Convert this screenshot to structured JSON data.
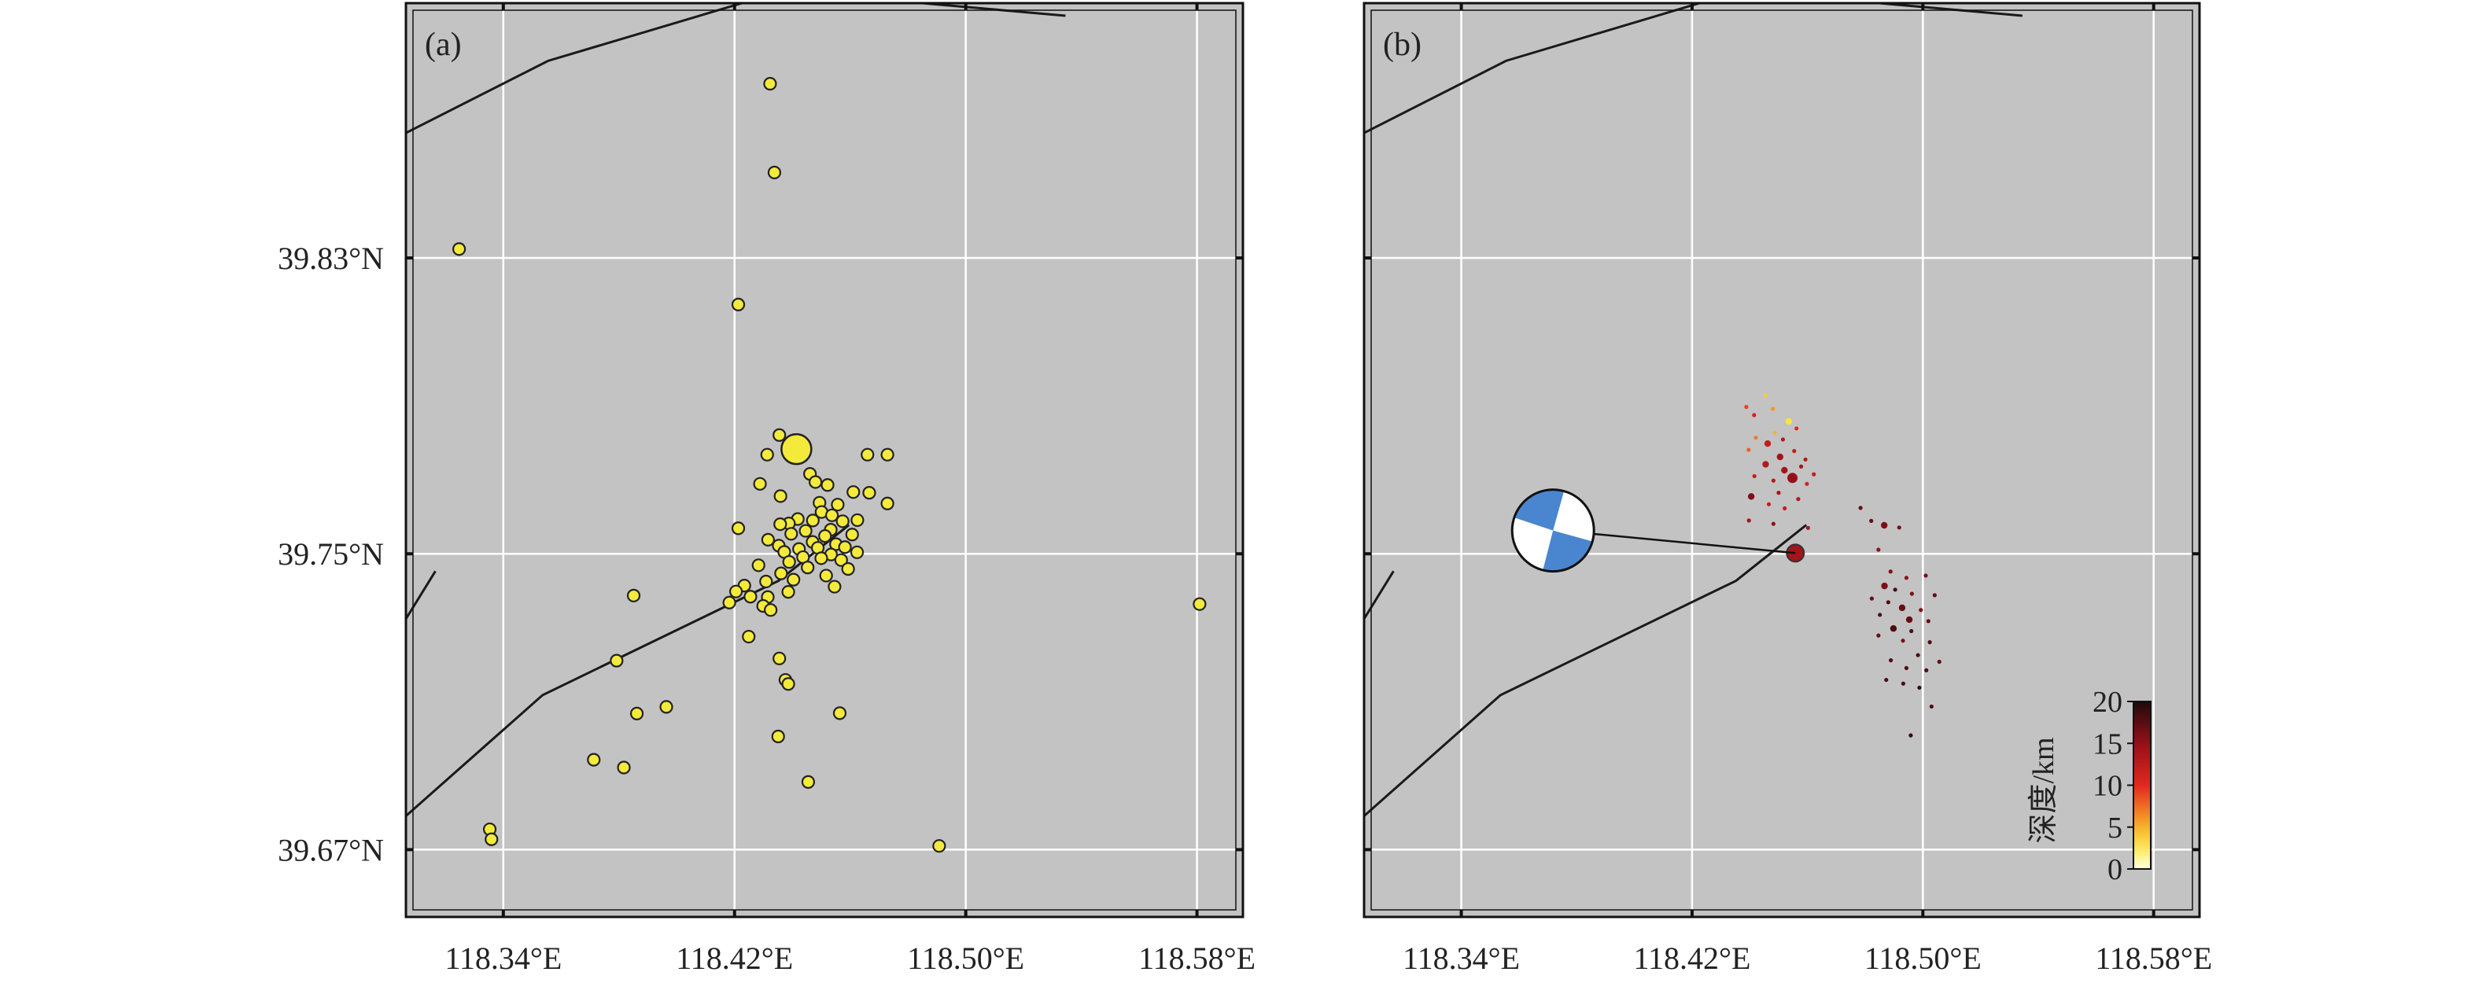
{
  "panels": {
    "a": {
      "label": "(a)"
    },
    "b": {
      "label": "(b)"
    }
  },
  "axes": {
    "y_ticks": [
      {
        "value": 39.83,
        "label": "39.83°N"
      },
      {
        "value": 39.75,
        "label": "39.75°N"
      },
      {
        "value": 39.67,
        "label": "39.67°N"
      }
    ],
    "x_ticks": [
      {
        "value": 118.34,
        "label": "118.34°E"
      },
      {
        "value": 118.42,
        "label": "118.42°E"
      },
      {
        "value": 118.5,
        "label": "118.50°E"
      },
      {
        "value": 118.58,
        "label": "118.58°E"
      }
    ],
    "lon_range": [
      118.3063,
      118.5959
    ],
    "lat_range": [
      39.6518,
      39.8989
    ]
  },
  "colorbar": {
    "label": "深度/km",
    "ticks": [
      "20",
      "15",
      "10",
      "5",
      "0"
    ],
    "range": [
      0,
      20
    ]
  },
  "colors": {
    "map_background": "#c3c3c3",
    "grid": "#ffffff",
    "fault": "#1a1a1a",
    "epicenter_fill": "#f4ea3b",
    "beachball_fill": "#4a86d0"
  },
  "chart_data": {
    "type": "scatter",
    "faults": [
      [
        [
          118.3063,
          39.8638
        ],
        [
          118.3555,
          39.8833
        ],
        [
          118.4367,
          39.9022
        ],
        [
          118.5345,
          39.8955
        ]
      ],
      [
        [
          118.3063,
          39.7324
        ],
        [
          118.3165,
          39.7453
        ]
      ],
      [
        [
          118.3063,
          39.6791
        ],
        [
          118.3536,
          39.7118
        ],
        [
          118.4352,
          39.7427
        ],
        [
          118.4596,
          39.7578
        ]
      ]
    ],
    "mainshock": {
      "lon": 118.4414,
      "lat": 39.7783,
      "depth": 12
    },
    "focal_mechanism": {
      "symbol_lon": 118.3718,
      "symbol_lat": 39.7563,
      "event_lon": 118.4558,
      "event_lat": 39.7502
    },
    "events": [
      {
        "lon": 118.4323,
        "lat": 39.8771,
        "depth": 12
      },
      {
        "lon": 118.4338,
        "lat": 39.8531,
        "depth": 12
      },
      {
        "lon": 118.3247,
        "lat": 39.8324,
        "depth": 12
      },
      {
        "lon": 118.4213,
        "lat": 39.8174,
        "depth": 12
      },
      {
        "lon": 118.4355,
        "lat": 39.7821,
        "depth": 12
      },
      {
        "lon": 118.4418,
        "lat": 39.7796,
        "depth": 12
      },
      {
        "lon": 118.4313,
        "lat": 39.7768,
        "depth": 12
      },
      {
        "lon": 118.466,
        "lat": 39.7768,
        "depth": 12
      },
      {
        "lon": 118.4729,
        "lat": 39.7768,
        "depth": 12
      },
      {
        "lon": 118.4461,
        "lat": 39.7716,
        "depth": 12
      },
      {
        "lon": 118.448,
        "lat": 39.7694,
        "depth": 12
      },
      {
        "lon": 118.4288,
        "lat": 39.7689,
        "depth": 12
      },
      {
        "lon": 118.4522,
        "lat": 39.7686,
        "depth": 12
      },
      {
        "lon": 118.4611,
        "lat": 39.7667,
        "depth": 12
      },
      {
        "lon": 118.4666,
        "lat": 39.7665,
        "depth": 12
      },
      {
        "lon": 118.4359,
        "lat": 39.7656,
        "depth": 12
      },
      {
        "lon": 118.4729,
        "lat": 39.7636,
        "depth": 12
      },
      {
        "lon": 118.4494,
        "lat": 39.7638,
        "depth": 12
      },
      {
        "lon": 118.4557,
        "lat": 39.7633,
        "depth": 12
      },
      {
        "lon": 118.4501,
        "lat": 39.7613,
        "depth": 12
      },
      {
        "lon": 118.4537,
        "lat": 39.7604,
        "depth": 12
      },
      {
        "lon": 118.4419,
        "lat": 39.7594,
        "depth": 12
      },
      {
        "lon": 118.4471,
        "lat": 39.759,
        "depth": 12
      },
      {
        "lon": 118.4388,
        "lat": 39.7582,
        "depth": 12
      },
      {
        "lon": 118.4574,
        "lat": 39.7588,
        "depth": 12
      },
      {
        "lon": 118.4625,
        "lat": 39.7591,
        "depth": 12
      },
      {
        "lon": 118.4358,
        "lat": 39.758,
        "depth": 12
      },
      {
        "lon": 118.4533,
        "lat": 39.7565,
        "depth": 12
      },
      {
        "lon": 118.4213,
        "lat": 39.7569,
        "depth": 12
      },
      {
        "lon": 118.4446,
        "lat": 39.7562,
        "depth": 12
      },
      {
        "lon": 118.4396,
        "lat": 39.7554,
        "depth": 12
      },
      {
        "lon": 118.4607,
        "lat": 39.7552,
        "depth": 12
      },
      {
        "lon": 118.4513,
        "lat": 39.7548,
        "depth": 12
      },
      {
        "lon": 118.4316,
        "lat": 39.7538,
        "depth": 12
      },
      {
        "lon": 118.447,
        "lat": 39.7532,
        "depth": 12
      },
      {
        "lon": 118.4551,
        "lat": 39.7526,
        "depth": 12
      },
      {
        "lon": 118.4353,
        "lat": 39.7522,
        "depth": 12
      },
      {
        "lon": 118.4423,
        "lat": 39.7513,
        "depth": 12
      },
      {
        "lon": 118.4488,
        "lat": 39.7516,
        "depth": 12
      },
      {
        "lon": 118.4582,
        "lat": 39.7518,
        "depth": 12
      },
      {
        "lon": 118.4372,
        "lat": 39.7505,
        "depth": 12
      },
      {
        "lon": 118.4624,
        "lat": 39.7504,
        "depth": 12
      },
      {
        "lon": 118.4534,
        "lat": 39.7498,
        "depth": 12
      },
      {
        "lon": 118.4437,
        "lat": 39.7491,
        "depth": 12
      },
      {
        "lon": 118.45,
        "lat": 39.7488,
        "depth": 12
      },
      {
        "lon": 118.4569,
        "lat": 39.7483,
        "depth": 12
      },
      {
        "lon": 118.4389,
        "lat": 39.7478,
        "depth": 12
      },
      {
        "lon": 118.4283,
        "lat": 39.7469,
        "depth": 12
      },
      {
        "lon": 118.4453,
        "lat": 39.7463,
        "depth": 12
      },
      {
        "lon": 118.4593,
        "lat": 39.7459,
        "depth": 12
      },
      {
        "lon": 118.4361,
        "lat": 39.7447,
        "depth": 12
      },
      {
        "lon": 118.4517,
        "lat": 39.7441,
        "depth": 12
      },
      {
        "lon": 118.4404,
        "lat": 39.743,
        "depth": 12
      },
      {
        "lon": 118.4309,
        "lat": 39.7425,
        "depth": 12
      },
      {
        "lon": 118.4234,
        "lat": 39.7414,
        "depth": 12
      },
      {
        "lon": 118.4546,
        "lat": 39.7411,
        "depth": 12
      },
      {
        "lon": 118.4386,
        "lat": 39.7397,
        "depth": 12
      },
      {
        "lon": 118.4205,
        "lat": 39.7398,
        "depth": 12
      },
      {
        "lon": 118.4255,
        "lat": 39.7384,
        "depth": 12
      },
      {
        "lon": 118.4315,
        "lat": 39.7383,
        "depth": 12
      },
      {
        "lon": 118.3851,
        "lat": 39.7387,
        "depth": 12
      },
      {
        "lon": 118.4182,
        "lat": 39.7368,
        "depth": 12
      },
      {
        "lon": 118.4299,
        "lat": 39.7359,
        "depth": 12
      },
      {
        "lon": 118.4325,
        "lat": 39.7348,
        "depth": 12
      },
      {
        "lon": 118.5809,
        "lat": 39.7364,
        "depth": 12
      },
      {
        "lon": 118.4249,
        "lat": 39.7276,
        "depth": 12
      },
      {
        "lon": 118.4355,
        "lat": 39.7217,
        "depth": 12
      },
      {
        "lon": 118.3792,
        "lat": 39.7211,
        "depth": 12
      },
      {
        "lon": 118.4376,
        "lat": 39.7159,
        "depth": 12
      },
      {
        "lon": 118.4386,
        "lat": 39.7148,
        "depth": 12
      },
      {
        "lon": 118.3964,
        "lat": 39.7086,
        "depth": 12
      },
      {
        "lon": 118.3862,
        "lat": 39.7068,
        "depth": 12
      },
      {
        "lon": 118.4564,
        "lat": 39.7069,
        "depth": 12
      },
      {
        "lon": 118.4351,
        "lat": 39.7006,
        "depth": 12
      },
      {
        "lon": 118.3713,
        "lat": 39.6943,
        "depth": 12
      },
      {
        "lon": 118.3817,
        "lat": 39.6922,
        "depth": 12
      },
      {
        "lon": 118.4455,
        "lat": 39.6883,
        "depth": 12
      },
      {
        "lon": 118.3353,
        "lat": 39.6755,
        "depth": 12
      },
      {
        "lon": 118.3359,
        "lat": 39.6728,
        "depth": 12
      },
      {
        "lon": 118.4908,
        "lat": 39.671,
        "depth": 12
      }
    ],
    "relocated_events": [
      {
        "lon": 118.4455,
        "lat": 39.7928,
        "depth": 4,
        "mag": 1
      },
      {
        "lon": 118.448,
        "lat": 39.7892,
        "depth": 6,
        "mag": 1
      },
      {
        "lon": 118.4388,
        "lat": 39.7897,
        "depth": 9,
        "mag": 1
      },
      {
        "lon": 118.4415,
        "lat": 39.7875,
        "depth": 11,
        "mag": 1
      },
      {
        "lon": 118.4535,
        "lat": 39.7858,
        "depth": 3,
        "mag": 2
      },
      {
        "lon": 118.4562,
        "lat": 39.7839,
        "depth": 10,
        "mag": 1
      },
      {
        "lon": 118.4487,
        "lat": 39.7828,
        "depth": 5,
        "mag": 1
      },
      {
        "lon": 118.4421,
        "lat": 39.7814,
        "depth": 7,
        "mag": 1
      },
      {
        "lon": 118.4515,
        "lat": 39.7809,
        "depth": 13,
        "mag": 1
      },
      {
        "lon": 118.4462,
        "lat": 39.7798,
        "depth": 12,
        "mag": 2
      },
      {
        "lon": 118.4396,
        "lat": 39.7781,
        "depth": 8,
        "mag": 1
      },
      {
        "lon": 118.4554,
        "lat": 39.7778,
        "depth": 12,
        "mag": 1
      },
      {
        "lon": 118.4505,
        "lat": 39.7762,
        "depth": 14,
        "mag": 2
      },
      {
        "lon": 118.4593,
        "lat": 39.7755,
        "depth": 13,
        "mag": 1
      },
      {
        "lon": 118.4455,
        "lat": 39.7742,
        "depth": 13,
        "mag": 2
      },
      {
        "lon": 118.4578,
        "lat": 39.7736,
        "depth": 14,
        "mag": 1
      },
      {
        "lon": 118.452,
        "lat": 39.7726,
        "depth": 14,
        "mag": 2
      },
      {
        "lon": 118.4622,
        "lat": 39.7715,
        "depth": 12,
        "mag": 1
      },
      {
        "lon": 118.4416,
        "lat": 39.771,
        "depth": 12,
        "mag": 1
      },
      {
        "lon": 118.4548,
        "lat": 39.7705,
        "depth": 15,
        "mag": 3
      },
      {
        "lon": 118.4482,
        "lat": 39.7698,
        "depth": 13,
        "mag": 1
      },
      {
        "lon": 118.4598,
        "lat": 39.7689,
        "depth": 11,
        "mag": 1
      },
      {
        "lon": 118.45,
        "lat": 39.7665,
        "depth": 14,
        "mag": 1
      },
      {
        "lon": 118.4405,
        "lat": 39.7655,
        "depth": 16,
        "mag": 2
      },
      {
        "lon": 118.4568,
        "lat": 39.7648,
        "depth": 13,
        "mag": 1
      },
      {
        "lon": 118.4466,
        "lat": 39.7634,
        "depth": 12,
        "mag": 1
      },
      {
        "lon": 118.4521,
        "lat": 39.7623,
        "depth": 12,
        "mag": 1
      },
      {
        "lon": 118.4397,
        "lat": 39.759,
        "depth": 14,
        "mag": 1
      },
      {
        "lon": 118.4482,
        "lat": 39.7581,
        "depth": 15,
        "mag": 1
      },
      {
        "lon": 118.4602,
        "lat": 39.757,
        "depth": 14,
        "mag": 1
      },
      {
        "lon": 118.4558,
        "lat": 39.7502,
        "depth": 14,
        "mag": 4
      },
      {
        "lon": 118.4784,
        "lat": 39.7624,
        "depth": 17,
        "mag": 1
      },
      {
        "lon": 118.4866,
        "lat": 39.7577,
        "depth": 16,
        "mag": 2
      },
      {
        "lon": 118.4821,
        "lat": 39.7589,
        "depth": 17,
        "mag": 1
      },
      {
        "lon": 118.4918,
        "lat": 39.7571,
        "depth": 16,
        "mag": 1
      },
      {
        "lon": 118.4846,
        "lat": 39.7511,
        "depth": 15,
        "mag": 1
      },
      {
        "lon": 118.4888,
        "lat": 39.7452,
        "depth": 16,
        "mag": 1
      },
      {
        "lon": 118.4943,
        "lat": 39.7435,
        "depth": 15,
        "mag": 1
      },
      {
        "lon": 118.501,
        "lat": 39.7441,
        "depth": 16,
        "mag": 1
      },
      {
        "lon": 118.4867,
        "lat": 39.7413,
        "depth": 16,
        "mag": 2
      },
      {
        "lon": 118.4904,
        "lat": 39.7403,
        "depth": 18,
        "mag": 1
      },
      {
        "lon": 118.4962,
        "lat": 39.7392,
        "depth": 16,
        "mag": 1
      },
      {
        "lon": 118.5041,
        "lat": 39.7388,
        "depth": 17,
        "mag": 1
      },
      {
        "lon": 118.4823,
        "lat": 39.7379,
        "depth": 17,
        "mag": 1
      },
      {
        "lon": 118.488,
        "lat": 39.7369,
        "depth": 18,
        "mag": 1
      },
      {
        "lon": 118.4928,
        "lat": 39.7354,
        "depth": 17,
        "mag": 2
      },
      {
        "lon": 118.4993,
        "lat": 39.7348,
        "depth": 16,
        "mag": 1
      },
      {
        "lon": 118.4851,
        "lat": 39.7335,
        "depth": 18,
        "mag": 1
      },
      {
        "lon": 118.4953,
        "lat": 39.7322,
        "depth": 17,
        "mag": 2
      },
      {
        "lon": 118.5019,
        "lat": 39.7318,
        "depth": 17,
        "mag": 1
      },
      {
        "lon": 118.4898,
        "lat": 39.7298,
        "depth": 18,
        "mag": 2
      },
      {
        "lon": 118.496,
        "lat": 39.7291,
        "depth": 18,
        "mag": 1
      },
      {
        "lon": 118.4846,
        "lat": 39.7279,
        "depth": 17,
        "mag": 1
      },
      {
        "lon": 118.4931,
        "lat": 39.7265,
        "depth": 16,
        "mag": 1
      },
      {
        "lon": 118.5024,
        "lat": 39.7261,
        "depth": 18,
        "mag": 1
      },
      {
        "lon": 118.4983,
        "lat": 39.7226,
        "depth": 18,
        "mag": 1
      },
      {
        "lon": 118.4889,
        "lat": 39.7212,
        "depth": 18,
        "mag": 1
      },
      {
        "lon": 118.5057,
        "lat": 39.7208,
        "depth": 17,
        "mag": 1
      },
      {
        "lon": 118.4943,
        "lat": 39.7191,
        "depth": 18,
        "mag": 1
      },
      {
        "lon": 118.5012,
        "lat": 39.7185,
        "depth": 18,
        "mag": 1
      },
      {
        "lon": 118.4873,
        "lat": 39.7159,
        "depth": 18,
        "mag": 1
      },
      {
        "lon": 118.4988,
        "lat": 39.7138,
        "depth": 19,
        "mag": 1
      },
      {
        "lon": 118.4932,
        "lat": 39.7149,
        "depth": 18,
        "mag": 1
      },
      {
        "lon": 118.503,
        "lat": 39.7087,
        "depth": 18,
        "mag": 1
      },
      {
        "lon": 118.4958,
        "lat": 39.7009,
        "depth": 19,
        "mag": 1
      }
    ]
  }
}
